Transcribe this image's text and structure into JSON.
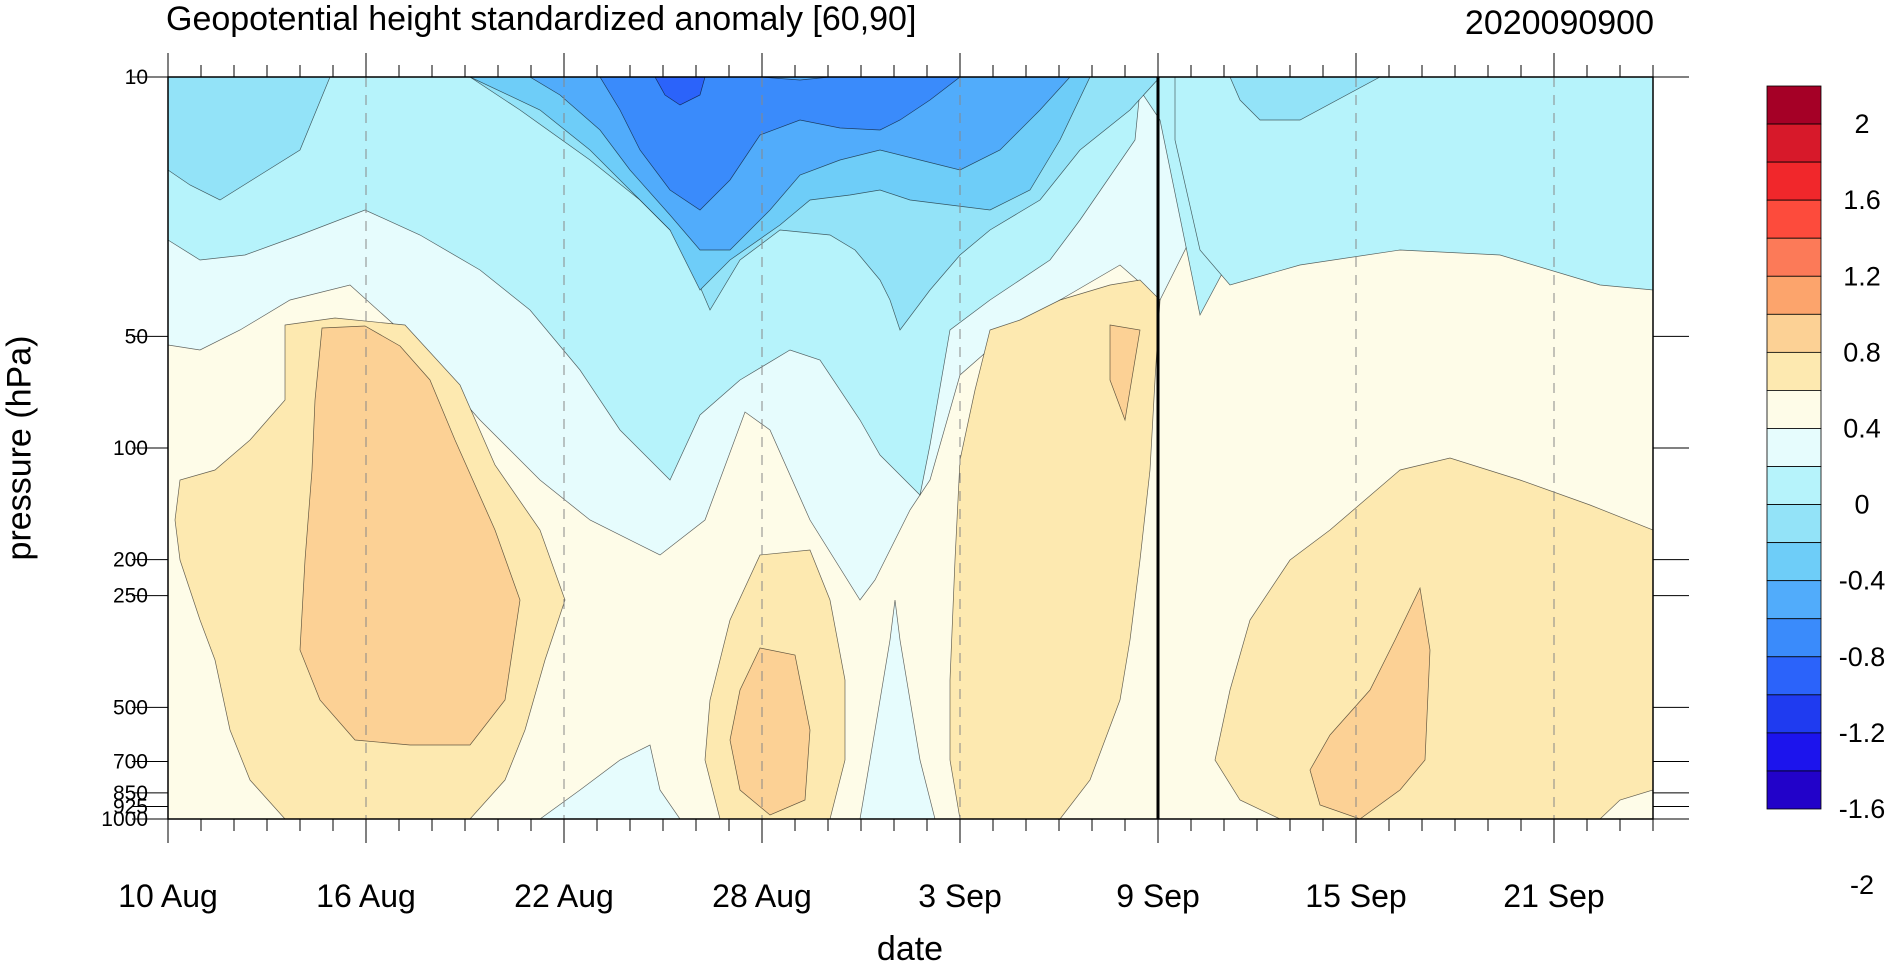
{
  "chart_data": {
    "type": "heatmap",
    "title": "Geopotential height standardized anomaly [60,90]",
    "date_stamp": "2020090900",
    "xlabel": "date",
    "ylabel": "pressure (hPa)",
    "x_tick_labels": [
      "10 Aug",
      "16 Aug",
      "22 Aug",
      "28 Aug",
      "3 Sep",
      "9 Sep",
      "15 Sep",
      "21 Sep"
    ],
    "x_range": [
      "10 Aug",
      "24 Sep"
    ],
    "y_scale": "log-pressure (inverted)",
    "y_tick_labels": [
      "10",
      "50",
      "100",
      "200",
      "250",
      "500",
      "700",
      "850",
      "925",
      "1000"
    ],
    "y_range": [
      1000,
      10
    ],
    "current_date_line": "9 Sep",
    "levels": [
      2,
      1.6,
      1.2,
      0.8,
      0.4,
      0,
      -0.4,
      -0.8,
      -1.2,
      -1.6,
      -2
    ],
    "colorbar_labels": [
      "2",
      "1.6",
      "1.2",
      "0.8",
      "0.4",
      "0",
      "-0.4",
      "-0.8",
      "-1.2",
      "-1.6",
      "-2"
    ],
    "colorbar_colors": [
      "#a50026",
      "#d7192a",
      "#f1272b",
      "#fd4b3c",
      "#fc7a58",
      "#fca46c",
      "#fcd195",
      "#fde9b0",
      "#fefce8",
      "#e6fcfd",
      "#b6f3fb",
      "#93e3f8",
      "#6ecdf8",
      "#51acfb",
      "#3a8bfb",
      "#2b63fa",
      "#1f3bf0",
      "#1c14ed",
      "#2202c9"
    ],
    "grid": "dashed vertical lines at x tick labels",
    "legend": "right colorbar",
    "colors": {
      "neg_2": "#1f3bf0",
      "neg_1_6": "#2b63fa",
      "neg_1_2": "#3a8bfb",
      "neg_0_8": "#51acfb",
      "neg_0_6": "#6ecdf8",
      "neg_0_4": "#93e3f8",
      "neg_0_2": "#b6f3fb",
      "neg_0": "#e6fcfd",
      "pos_0": "#fefce8",
      "pos_0_2": "#fde9b0",
      "pos_0_4": "#fcd195",
      "pos_0_6": "#fca46c"
    }
  }
}
